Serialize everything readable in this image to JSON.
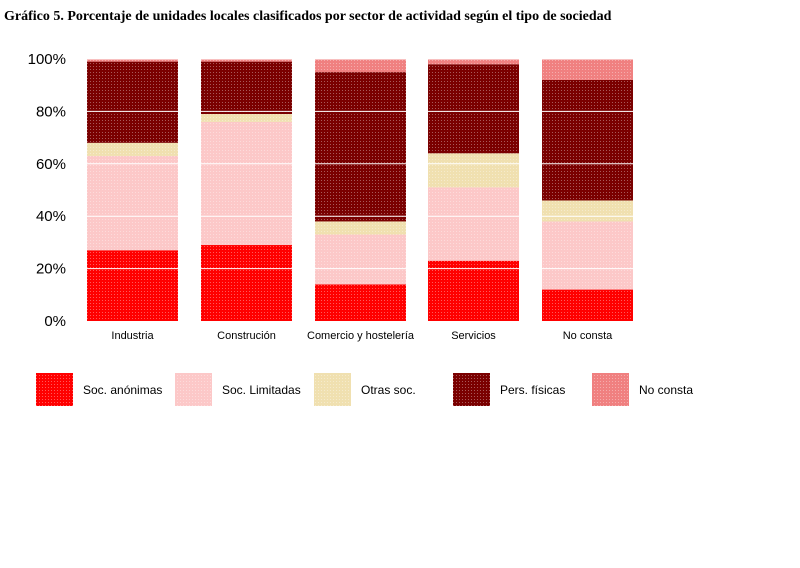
{
  "title": "Gráfico 5. Porcentaje de unidades locales clasificados por sector de actividad según el tipo de sociedad",
  "chart_data": {
    "type": "bar",
    "stacked": true,
    "percent": true,
    "title": "Gráfico 5. Porcentaje de unidades locales clasificados por sector de actividad según el tipo de sociedad",
    "categories": [
      "Industria",
      "Construción",
      "Comercio y hostelería",
      "Servicios",
      "No consta"
    ],
    "y_ticks": [
      "0%",
      "20%",
      "40%",
      "60%",
      "80%",
      "100%"
    ],
    "ylim": [
      0,
      100
    ],
    "grid": true,
    "legend_position": "bottom",
    "series": [
      {
        "name": "Soc. anónimas",
        "color": "#ff0000",
        "values": [
          27,
          29,
          14,
          23,
          12
        ]
      },
      {
        "name": "Soc. Limitadas",
        "color": "#fcc8c8",
        "values": [
          36,
          47,
          19,
          28,
          26
        ]
      },
      {
        "name": "Otras soc.",
        "color": "#f0e0b0",
        "values": [
          5,
          3,
          5,
          13,
          8
        ]
      },
      {
        "name": "Pers. físicas",
        "color": "#7a0000",
        "values": [
          31,
          20,
          57,
          34,
          46
        ]
      },
      {
        "name": "No consta",
        "color": "#f08080",
        "values": [
          1,
          1,
          5,
          2,
          8
        ]
      }
    ]
  }
}
